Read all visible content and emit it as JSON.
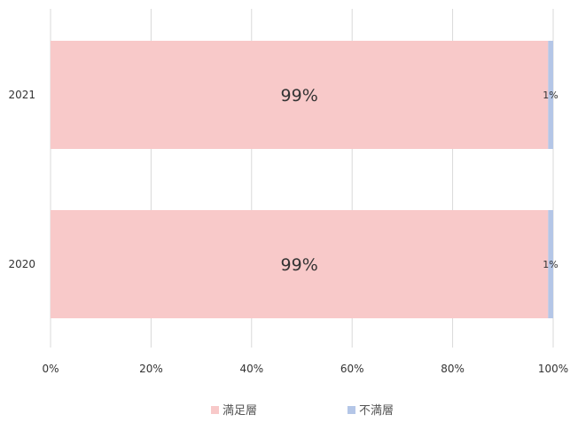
{
  "chart_data": {
    "type": "bar",
    "orientation": "horizontal",
    "stacked": true,
    "categories": [
      "2021",
      "2020"
    ],
    "series": [
      {
        "name": "満足層",
        "values": [
          99,
          99
        ],
        "labels": [
          "99%",
          "99%"
        ],
        "color": "#f8c9c9"
      },
      {
        "name": "不満層",
        "values": [
          1,
          1
        ],
        "labels": [
          "1%",
          "1%"
        ],
        "color": "#b4c6e7"
      }
    ],
    "xlim": [
      0,
      100
    ],
    "xticks": [
      "0%",
      "20%",
      "40%",
      "60%",
      "80%",
      "100%"
    ],
    "grid": true,
    "legend_position": "bottom",
    "title": "",
    "xlabel": "",
    "ylabel": ""
  }
}
